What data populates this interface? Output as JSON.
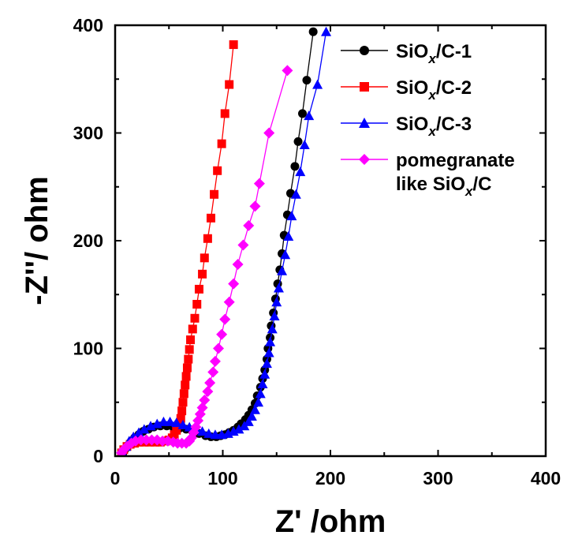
{
  "chart_data": {
    "type": "scatter",
    "xlabel": "Z' /ohm",
    "ylabel": "-Z''/ ohm",
    "xlim": [
      0,
      400
    ],
    "ylim": [
      0,
      400
    ],
    "xticks": [
      "0",
      "100",
      "200",
      "300",
      "400"
    ],
    "yticks": [
      "0",
      "100",
      "200",
      "300",
      "400"
    ],
    "grid": false,
    "legend_position": "top-right",
    "series": [
      {
        "name": "SiOx/C-1",
        "legend_parts": [
          "SiO",
          "x",
          "/C-1"
        ],
        "color": "#000000",
        "marker": "circle",
        "points": [
          [
            7,
            2
          ],
          [
            9,
            6
          ],
          [
            12,
            10
          ],
          [
            15,
            14
          ],
          [
            18,
            17
          ],
          [
            22,
            20
          ],
          [
            26,
            23
          ],
          [
            31,
            25
          ],
          [
            36,
            27
          ],
          [
            42,
            28
          ],
          [
            48,
            28
          ],
          [
            54,
            27
          ],
          [
            60,
            26
          ],
          [
            66,
            25
          ],
          [
            72,
            23
          ],
          [
            78,
            21
          ],
          [
            84,
            19
          ],
          [
            89,
            18
          ],
          [
            94,
            18
          ],
          [
            98,
            19
          ],
          [
            102,
            20
          ],
          [
            106,
            22
          ],
          [
            110,
            24
          ],
          [
            114,
            27
          ],
          [
            117,
            30
          ],
          [
            121,
            34
          ],
          [
            124,
            38
          ],
          [
            127,
            43
          ],
          [
            130,
            49
          ],
          [
            132,
            56
          ],
          [
            135,
            64
          ],
          [
            137,
            72
          ],
          [
            139,
            80
          ],
          [
            141,
            90
          ],
          [
            142,
            100
          ],
          [
            144,
            110
          ],
          [
            145,
            121
          ],
          [
            147,
            133
          ],
          [
            149,
            146
          ],
          [
            151,
            160
          ],
          [
            153,
            173
          ],
          [
            155,
            188
          ],
          [
            157,
            205
          ],
          [
            160,
            224
          ],
          [
            163,
            244
          ],
          [
            167,
            269
          ],
          [
            170,
            292
          ],
          [
            174,
            318
          ],
          [
            178,
            349
          ],
          [
            184,
            394
          ]
        ]
      },
      {
        "name": "SiOx/C-2",
        "legend_parts": [
          "SiO",
          "x",
          "/C-2"
        ],
        "color": "#ff0000",
        "marker": "square",
        "points": [
          [
            6,
            3
          ],
          [
            8,
            6
          ],
          [
            11,
            9
          ],
          [
            14,
            11
          ],
          [
            18,
            12
          ],
          [
            22,
            13
          ],
          [
            27,
            13
          ],
          [
            32,
            13
          ],
          [
            37,
            13
          ],
          [
            42,
            13
          ],
          [
            47,
            14
          ],
          [
            50,
            15
          ],
          [
            53,
            17
          ],
          [
            55,
            20
          ],
          [
            57,
            24
          ],
          [
            59,
            29
          ],
          [
            61,
            35
          ],
          [
            62,
            42
          ],
          [
            63,
            50
          ],
          [
            64,
            58
          ],
          [
            65,
            66
          ],
          [
            66,
            74
          ],
          [
            67,
            82
          ],
          [
            68,
            90
          ],
          [
            69,
            99
          ],
          [
            70,
            108
          ],
          [
            72,
            118
          ],
          [
            74,
            128
          ],
          [
            76,
            141
          ],
          [
            78,
            155
          ],
          [
            81,
            169
          ],
          [
            83,
            184
          ],
          [
            86,
            202
          ],
          [
            89,
            221
          ],
          [
            92,
            243
          ],
          [
            95,
            265
          ],
          [
            99,
            290
          ],
          [
            102,
            318
          ],
          [
            106,
            345
          ],
          [
            110,
            382
          ]
        ]
      },
      {
        "name": "SiOx/C-3",
        "legend_parts": [
          "SiO",
          "x",
          "/C-3"
        ],
        "color": "#0000ff",
        "marker": "triangle",
        "points": [
          [
            7,
            3
          ],
          [
            10,
            9
          ],
          [
            13,
            14
          ],
          [
            17,
            18
          ],
          [
            22,
            22
          ],
          [
            27,
            25
          ],
          [
            33,
            28
          ],
          [
            39,
            30
          ],
          [
            45,
            32
          ],
          [
            51,
            32
          ],
          [
            57,
            31
          ],
          [
            63,
            29
          ],
          [
            69,
            27
          ],
          [
            75,
            25
          ],
          [
            81,
            23
          ],
          [
            87,
            21
          ],
          [
            93,
            20
          ],
          [
            99,
            20
          ],
          [
            105,
            21
          ],
          [
            110,
            23
          ],
          [
            115,
            25
          ],
          [
            120,
            28
          ],
          [
            124,
            32
          ],
          [
            127,
            37
          ],
          [
            130,
            43
          ],
          [
            133,
            50
          ],
          [
            135,
            58
          ],
          [
            137,
            67
          ],
          [
            139,
            76
          ],
          [
            141,
            86
          ],
          [
            143,
            96
          ],
          [
            144,
            106
          ],
          [
            146,
            118
          ],
          [
            148,
            130
          ],
          [
            150,
            143
          ],
          [
            152,
            156
          ],
          [
            155,
            172
          ],
          [
            158,
            187
          ],
          [
            161,
            204
          ],
          [
            164,
            223
          ],
          [
            168,
            243
          ],
          [
            172,
            264
          ],
          [
            176,
            289
          ],
          [
            180,
            316
          ],
          [
            188,
            345
          ],
          [
            196,
            394
          ]
        ]
      },
      {
        "name": "pomegranate like SiOx/C",
        "legend_parts": [
          "pomegranate",
          "like SiO",
          "x",
          "/C"
        ],
        "color": "#ff00ff",
        "marker": "diamond",
        "points": [
          [
            6,
            3
          ],
          [
            8,
            6
          ],
          [
            11,
            9
          ],
          [
            15,
            12
          ],
          [
            19,
            14
          ],
          [
            24,
            15
          ],
          [
            29,
            15
          ],
          [
            34,
            15
          ],
          [
            39,
            15
          ],
          [
            44,
            14
          ],
          [
            49,
            14
          ],
          [
            54,
            13
          ],
          [
            58,
            12
          ],
          [
            62,
            12
          ],
          [
            66,
            12
          ],
          [
            69,
            14
          ],
          [
            71,
            17
          ],
          [
            73,
            22
          ],
          [
            75,
            27
          ],
          [
            77,
            33
          ],
          [
            79,
            39
          ],
          [
            81,
            45
          ],
          [
            83,
            52
          ],
          [
            86,
            60
          ],
          [
            88,
            68
          ],
          [
            91,
            78
          ],
          [
            93,
            88
          ],
          [
            96,
            100
          ],
          [
            99,
            113
          ],
          [
            102,
            127
          ],
          [
            106,
            143
          ],
          [
            110,
            160
          ],
          [
            114,
            178
          ],
          [
            119,
            196
          ],
          [
            124,
            214
          ],
          [
            130,
            232
          ],
          [
            134,
            253
          ],
          [
            143,
            300
          ],
          [
            160,
            358
          ]
        ]
      }
    ]
  }
}
